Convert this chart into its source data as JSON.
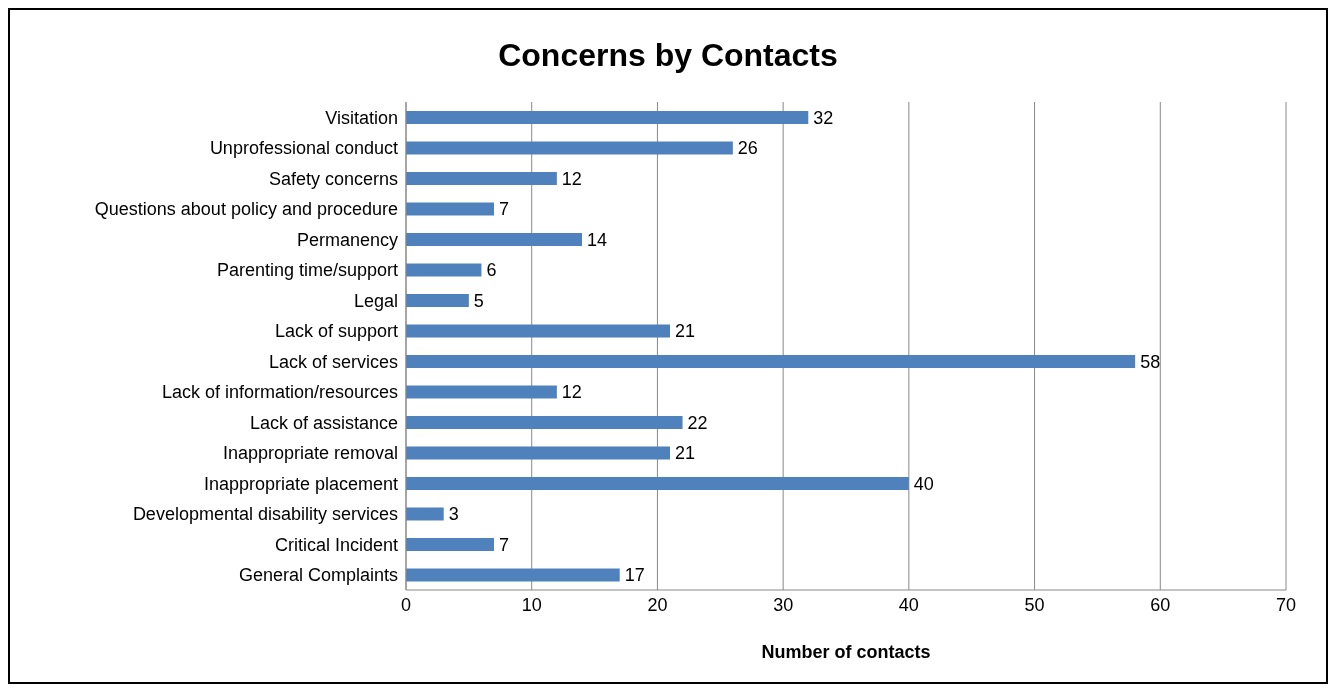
{
  "chart_data": {
    "type": "bar",
    "orientation": "horizontal",
    "title": "Concerns by Contacts",
    "xlabel": "Number of contacts",
    "categories": [
      "Visitation",
      "Unprofessional conduct",
      "Safety concerns",
      "Questions about policy and procedure",
      "Permanency",
      "Parenting time/support",
      "Legal",
      "Lack of support",
      "Lack of services",
      "Lack of information/resources",
      "Lack of assistance",
      "Inappropriate removal",
      "Inappropriate placement",
      "Developmental disability services",
      "Critical Incident",
      "General Complaints"
    ],
    "values": [
      32,
      26,
      12,
      7,
      14,
      6,
      5,
      21,
      58,
      12,
      22,
      21,
      40,
      3,
      7,
      17
    ],
    "color": "#4f81bd",
    "xlim": [
      0,
      70
    ],
    "xticks": [
      0,
      10,
      20,
      30,
      40,
      50,
      60,
      70
    ],
    "grid": "x",
    "data_labels": true
  }
}
